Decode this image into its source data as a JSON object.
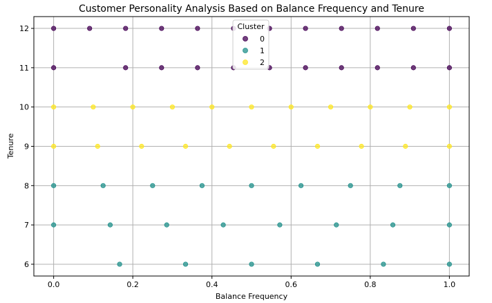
{
  "chart_data": {
    "type": "scatter",
    "title": "Customer Personality Analysis Based on Balance Frequency and Tenure",
    "xlabel": "Balance Frequency",
    "ylabel": "Tenure",
    "xlim": [
      -0.05,
      1.05
    ],
    "ylim": [
      5.7,
      12.3
    ],
    "xticks": [
      0.0,
      0.2,
      0.4,
      0.6,
      0.8,
      1.0
    ],
    "xtick_labels": [
      "0.0",
      "0.2",
      "0.4",
      "0.6",
      "0.8",
      "1.0"
    ],
    "yticks": [
      6,
      7,
      8,
      9,
      10,
      11,
      12
    ],
    "ytick_labels": [
      "6",
      "7",
      "8",
      "9",
      "10",
      "11",
      "12"
    ],
    "grid": true,
    "legend": {
      "title": "Cluster",
      "placement": "top-center"
    },
    "series": [
      {
        "name": "0",
        "color": "#440154",
        "points": [
          [
            0.0,
            12
          ],
          [
            0.0909,
            12
          ],
          [
            0.1818,
            12
          ],
          [
            0.2727,
            12
          ],
          [
            0.3636,
            12
          ],
          [
            0.4545,
            12
          ],
          [
            0.5455,
            12
          ],
          [
            0.6364,
            12
          ],
          [
            0.7273,
            12
          ],
          [
            0.8182,
            12
          ],
          [
            0.9091,
            12
          ],
          [
            1.0,
            12
          ],
          [
            0.0,
            11
          ],
          [
            0.1818,
            11
          ],
          [
            0.2727,
            11
          ],
          [
            0.3636,
            11
          ],
          [
            0.4545,
            11
          ],
          [
            0.5455,
            11
          ],
          [
            0.6364,
            11
          ],
          [
            0.7273,
            11
          ],
          [
            0.8182,
            11
          ],
          [
            0.9091,
            11
          ],
          [
            1.0,
            11
          ]
        ]
      },
      {
        "name": "1",
        "color": "#21918c",
        "points": [
          [
            0.0,
            8
          ],
          [
            0.125,
            8
          ],
          [
            0.25,
            8
          ],
          [
            0.375,
            8
          ],
          [
            0.5,
            8
          ],
          [
            0.625,
            8
          ],
          [
            0.75,
            8
          ],
          [
            0.875,
            8
          ],
          [
            1.0,
            8
          ],
          [
            0.0,
            7
          ],
          [
            0.1429,
            7
          ],
          [
            0.2857,
            7
          ],
          [
            0.4286,
            7
          ],
          [
            0.5714,
            7
          ],
          [
            0.7143,
            7
          ],
          [
            0.8571,
            7
          ],
          [
            1.0,
            7
          ],
          [
            0.1667,
            6
          ],
          [
            0.3333,
            6
          ],
          [
            0.5,
            6
          ],
          [
            0.6667,
            6
          ],
          [
            0.8333,
            6
          ],
          [
            1.0,
            6
          ]
        ]
      },
      {
        "name": "2",
        "color": "#fde725",
        "points": [
          [
            0.0,
            10
          ],
          [
            0.1,
            10
          ],
          [
            0.2,
            10
          ],
          [
            0.3,
            10
          ],
          [
            0.4,
            10
          ],
          [
            0.5,
            10
          ],
          [
            0.6,
            10
          ],
          [
            0.7,
            10
          ],
          [
            0.8,
            10
          ],
          [
            0.9,
            10
          ],
          [
            1.0,
            10
          ],
          [
            0.0,
            9
          ],
          [
            0.1111,
            9
          ],
          [
            0.2222,
            9
          ],
          [
            0.3333,
            9
          ],
          [
            0.4444,
            9
          ],
          [
            0.5556,
            9
          ],
          [
            0.6667,
            9
          ],
          [
            0.7778,
            9
          ],
          [
            0.8889,
            9
          ],
          [
            1.0,
            9
          ]
        ]
      }
    ]
  }
}
